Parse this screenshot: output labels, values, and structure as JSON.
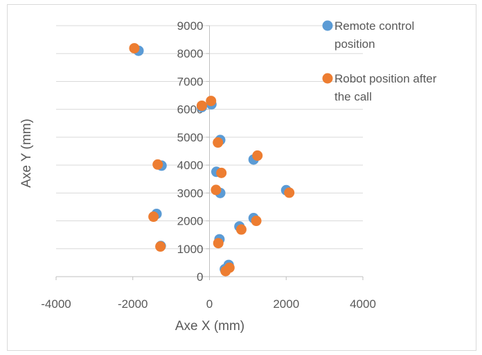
{
  "chart_data": {
    "type": "scatter",
    "title": "",
    "xlabel": "Axe X (mm)",
    "ylabel": "Axe Y (mm)",
    "xlim": [
      -4000,
      4000
    ],
    "ylim": [
      0,
      9000
    ],
    "x_ticks": [
      "-4000",
      "-2000",
      "0",
      "2000",
      "4000"
    ],
    "y_ticks": [
      "0",
      "1000",
      "2000",
      "3000",
      "4000",
      "5000",
      "6000",
      "7000",
      "8000",
      "9000"
    ],
    "grid": "horizontal",
    "legend_position": "right",
    "series": [
      {
        "name": "Remote control position",
        "color": "#5b9bd5",
        "points": [
          [
            -1850,
            8100
          ],
          [
            -200,
            6080
          ],
          [
            50,
            6180
          ],
          [
            280,
            4900
          ],
          [
            1150,
            4200
          ],
          [
            -1250,
            3980
          ],
          [
            180,
            3760
          ],
          [
            280,
            3000
          ],
          [
            2000,
            3100
          ],
          [
            -1380,
            2250
          ],
          [
            1150,
            2100
          ],
          [
            780,
            1800
          ],
          [
            260,
            1340
          ],
          [
            -1270,
            1100
          ],
          [
            500,
            420
          ],
          [
            400,
            270
          ]
        ]
      },
      {
        "name": "Robot position after the call",
        "color": "#ed7d31",
        "points": [
          [
            -1960,
            8190
          ],
          [
            -200,
            6130
          ],
          [
            40,
            6300
          ],
          [
            220,
            4810
          ],
          [
            1250,
            4340
          ],
          [
            -1350,
            4020
          ],
          [
            310,
            3720
          ],
          [
            170,
            3110
          ],
          [
            2080,
            3010
          ],
          [
            -1460,
            2150
          ],
          [
            1220,
            2000
          ],
          [
            830,
            1690
          ],
          [
            230,
            1200
          ],
          [
            -1280,
            1080
          ],
          [
            520,
            320
          ],
          [
            420,
            200
          ]
        ]
      }
    ]
  }
}
